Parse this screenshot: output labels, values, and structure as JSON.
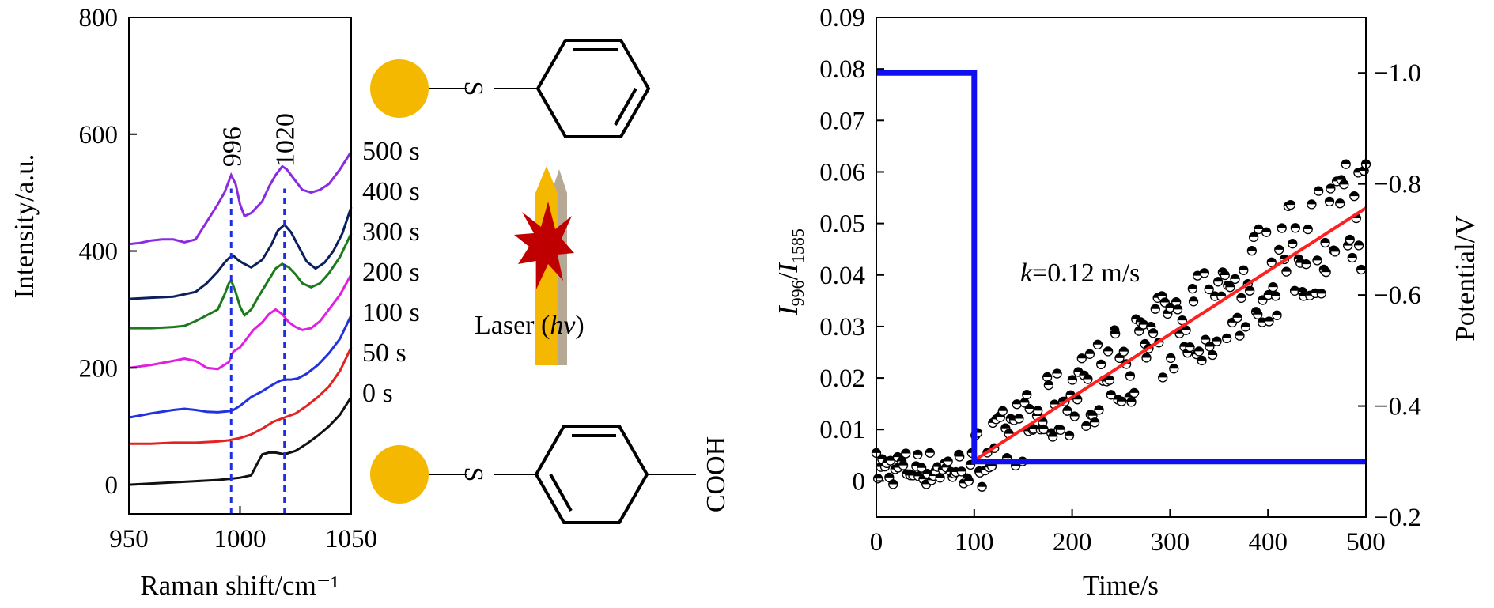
{
  "chart_data": [
    {
      "type": "line",
      "xlabel": "Raman shift/cm⁻¹",
      "ylabel": "Intensity/a.u.",
      "xlim": [
        950,
        1050
      ],
      "ylim": [
        -50,
        800
      ],
      "xticks": [
        950,
        1000,
        1050
      ],
      "yticks": [
        0,
        200,
        400,
        600,
        800
      ],
      "peaks": [
        {
          "x": 996,
          "label": "996"
        },
        {
          "x": 1020,
          "label": "1020"
        }
      ],
      "series": [
        {
          "name": "0 s",
          "color": "#111111",
          "x": [
            950,
            960,
            970,
            980,
            990,
            995,
            1000,
            1005,
            1008,
            1010,
            1013,
            1016,
            1020,
            1025,
            1030,
            1035,
            1040,
            1045,
            1050
          ],
          "y": [
            0,
            2,
            4,
            6,
            8,
            10,
            12,
            16,
            38,
            52,
            55,
            55,
            52,
            58,
            70,
            84,
            100,
            120,
            150
          ]
        },
        {
          "name": "50 s",
          "color": "#e32222",
          "x": [
            950,
            960,
            970,
            980,
            990,
            995,
            1000,
            1005,
            1010,
            1015,
            1020,
            1025,
            1030,
            1035,
            1040,
            1045,
            1050
          ],
          "y": [
            70,
            70,
            72,
            72,
            74,
            76,
            80,
            86,
            96,
            108,
            115,
            122,
            135,
            150,
            168,
            195,
            235
          ]
        },
        {
          "name": "100 s",
          "color": "#2233dd",
          "x": [
            950,
            960,
            970,
            975,
            980,
            985,
            990,
            995,
            997,
            1000,
            1005,
            1010,
            1015,
            1018,
            1020,
            1023,
            1026,
            1030,
            1035,
            1040,
            1045,
            1050
          ],
          "y": [
            115,
            122,
            128,
            130,
            128,
            125,
            124,
            126,
            128,
            135,
            150,
            160,
            172,
            178,
            180,
            180,
            182,
            190,
            205,
            225,
            250,
            290
          ]
        },
        {
          "name": "200 s",
          "color": "#e020e0",
          "x": [
            950,
            960,
            970,
            975,
            980,
            985,
            990,
            995,
            997,
            1000,
            1003,
            1006,
            1010,
            1013,
            1016,
            1019,
            1022,
            1025,
            1028,
            1032,
            1036,
            1040,
            1045,
            1050
          ],
          "y": [
            200,
            205,
            212,
            216,
            212,
            200,
            198,
            210,
            228,
            235,
            250,
            265,
            278,
            292,
            300,
            292,
            278,
            270,
            265,
            268,
            280,
            300,
            325,
            360
          ]
        },
        {
          "name": "300 s",
          "color": "#1b7a1b",
          "x": [
            950,
            960,
            970,
            975,
            980,
            985,
            990,
            993,
            995,
            996,
            998,
            1000,
            1002,
            1005,
            1008,
            1012,
            1016,
            1019,
            1022,
            1025,
            1028,
            1032,
            1036,
            1040,
            1045,
            1050
          ],
          "y": [
            268,
            268,
            270,
            272,
            280,
            290,
            300,
            325,
            345,
            350,
            330,
            305,
            290,
            300,
            320,
            345,
            370,
            378,
            372,
            360,
            345,
            338,
            345,
            362,
            390,
            430
          ]
        },
        {
          "name": "400 s",
          "color": "#0b1e5e",
          "x": [
            950,
            960,
            970,
            980,
            985,
            990,
            993,
            995,
            997,
            999,
            1001,
            1005,
            1010,
            1014,
            1017,
            1020,
            1023,
            1026,
            1030,
            1034,
            1038,
            1042,
            1046,
            1050
          ],
          "y": [
            318,
            320,
            322,
            330,
            345,
            365,
            380,
            388,
            392,
            385,
            380,
            372,
            385,
            410,
            435,
            445,
            432,
            410,
            382,
            370,
            380,
            400,
            430,
            475
          ]
        },
        {
          "name": "500 s",
          "color": "#8a2be2",
          "x": [
            950,
            955,
            960,
            965,
            970,
            975,
            980,
            985,
            990,
            993,
            995,
            996,
            998,
            1000,
            1002,
            1005,
            1010,
            1013,
            1016,
            1019,
            1021,
            1024,
            1028,
            1032,
            1036,
            1040,
            1045,
            1050
          ],
          "y": [
            412,
            414,
            418,
            420,
            420,
            415,
            420,
            450,
            480,
            500,
            520,
            530,
            515,
            480,
            460,
            465,
            485,
            510,
            530,
            545,
            540,
            525,
            505,
            500,
            505,
            515,
            540,
            570
          ]
        }
      ]
    },
    {
      "type": "scatter",
      "xlabel": "Time/s",
      "ylabel_parts": {
        "a": "I",
        "a_sub": "996",
        "sep": "/",
        "b": "I",
        "b_sub": "1585"
      },
      "y2label": "Potential/V",
      "xlim": [
        0,
        500
      ],
      "ylim": [
        -0.007,
        0.09
      ],
      "y2lim": [
        -0.2,
        -1.1
      ],
      "xticks": [
        0,
        100,
        200,
        300,
        400,
        500
      ],
      "yticks": [
        "0",
        "0.01",
        "0.02",
        "0.03",
        "0.04",
        "0.05",
        "0.06",
        "0.07",
        "0.08",
        "0.09"
      ],
      "y2ticks": [
        "−0.2",
        "−0.4",
        "−0.6",
        "−0.8",
        "−1.0"
      ],
      "annotation": {
        "k_symbol": "k",
        "k_value": "=0.12 m/s"
      },
      "scatter_series": {
        "name": "I996/I1585",
        "color": "#000000",
        "n_points": 240,
        "fit_x": [
          100,
          500
        ],
        "fit_y": [
          0.004,
          0.053
        ]
      },
      "fit_line": {
        "x": [
          100,
          500
        ],
        "y": [
          0.004,
          0.053
        ],
        "color": "#ff2020"
      },
      "potential_step": {
        "x": [
          0,
          100,
          100,
          500
        ],
        "y": [
          -1.0,
          -1.0,
          -0.3,
          -0.3
        ],
        "color": "#1010ee"
      }
    }
  ],
  "schematic": {
    "top_label": "S",
    "bottom_label": "S",
    "cooh_label": "COOH",
    "laser_text": "Laser (",
    "laser_italic": "hv",
    "laser_close": ")",
    "gold_color": "#f5b800",
    "burst_color": "#c00000"
  }
}
